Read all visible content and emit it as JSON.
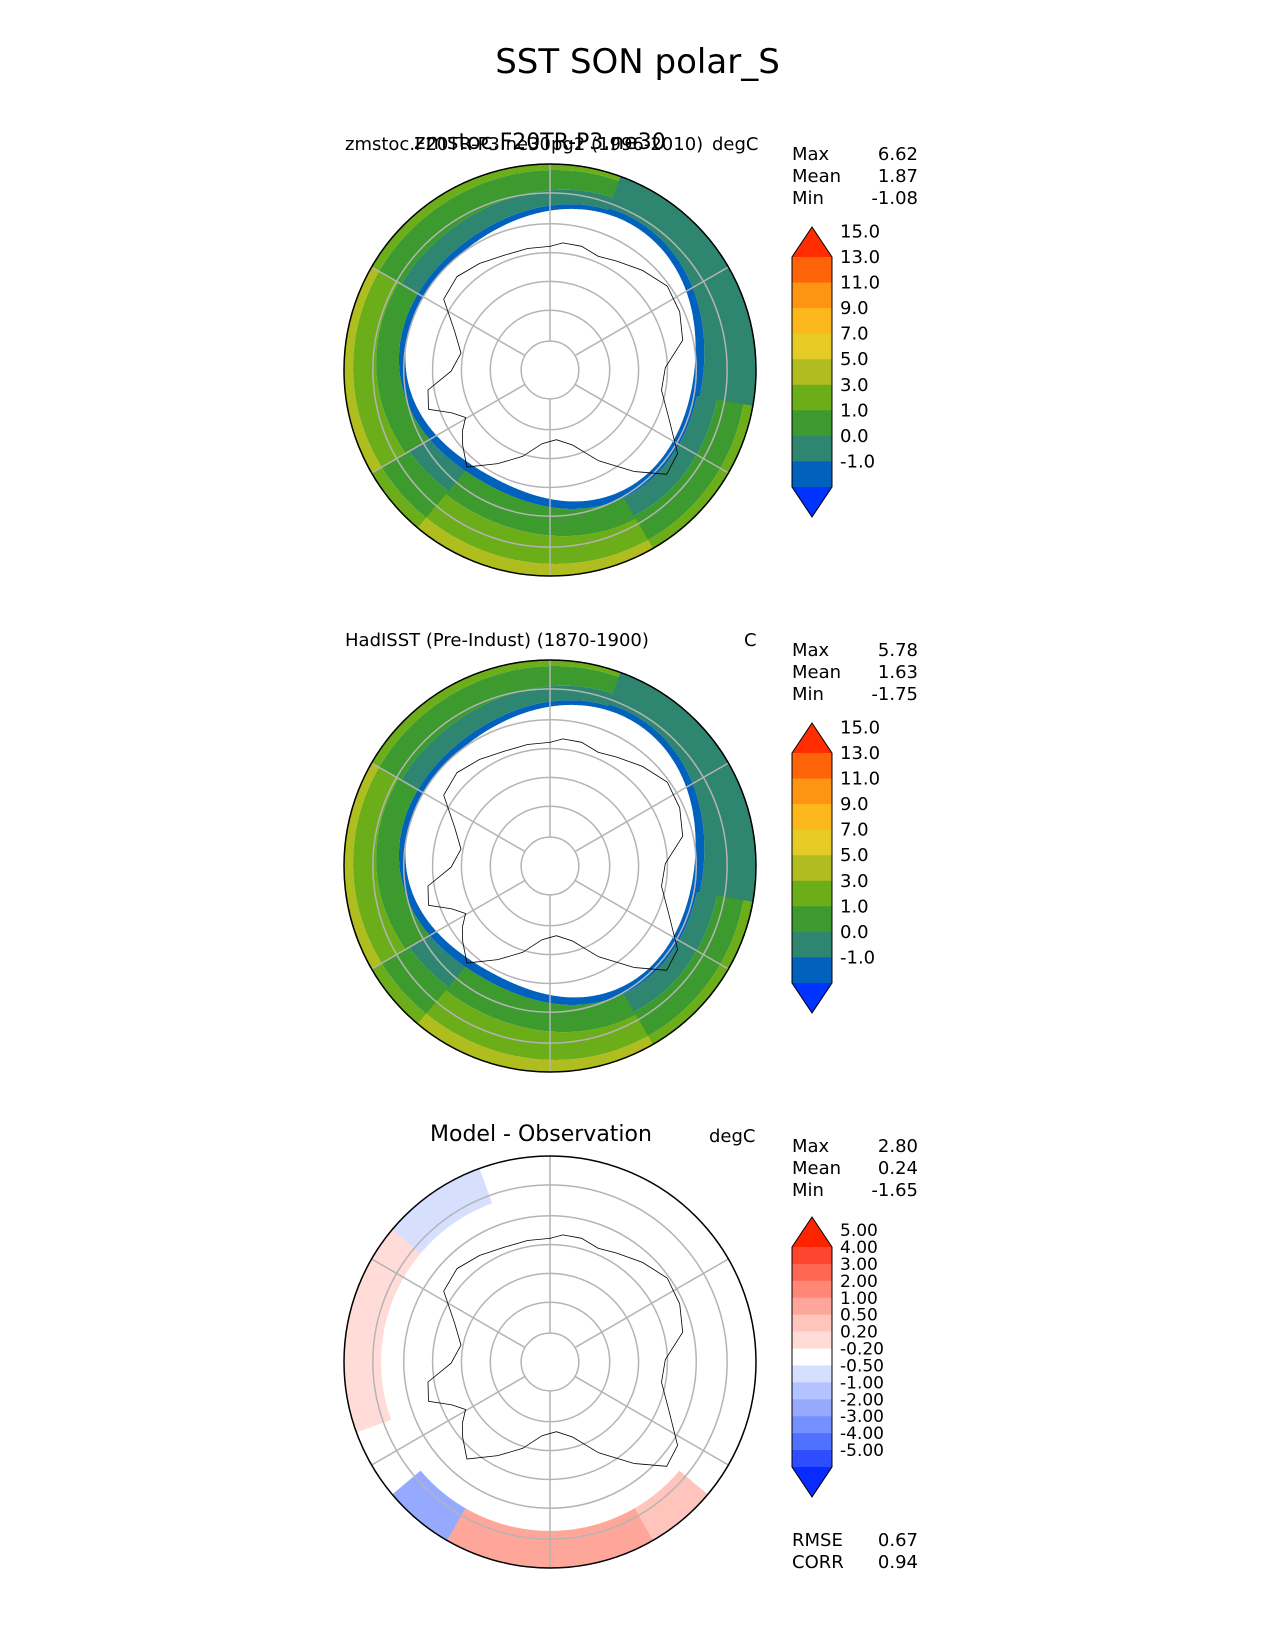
{
  "figure": {
    "title": "SST SON polar_S"
  },
  "chart_data": [
    {
      "type": "heatmap",
      "projection": "south-polar-stereographic",
      "title_left": "zmstoc.F20TR-P3.ne30pg2 (1996-2010)",
      "title_center": "zmstoc.F20TR-P3.ne30",
      "title_right": "degC",
      "stats": {
        "max_label": "Max",
        "max": "6.62",
        "mean_label": "Mean",
        "mean": "1.87",
        "min_label": "Min",
        "min": "-1.08"
      },
      "colorbar": {
        "levels": [
          "-1.0",
          "0.0",
          "1.0",
          "3.0",
          "5.0",
          "7.0",
          "9.0",
          "11.0",
          "13.0",
          "15.0"
        ],
        "colors": [
          "#0033ff",
          "#0062bd",
          "#2e8570",
          "#3c9a2e",
          "#6cad1a",
          "#afbd1f",
          "#e6cb26",
          "#fdb91c",
          "#fd9412",
          "#fd6307",
          "#ff2d00"
        ],
        "extend": "both"
      }
    },
    {
      "type": "heatmap",
      "projection": "south-polar-stereographic",
      "title_left": "HadISST (Pre-Indust) (1870-1900)",
      "title_right": "C",
      "stats": {
        "max_label": "Max",
        "max": "5.78",
        "mean_label": "Mean",
        "mean": "1.63",
        "min_label": "Min",
        "min": "-1.75"
      },
      "colorbar": {
        "levels": [
          "-1.0",
          "0.0",
          "1.0",
          "3.0",
          "5.0",
          "7.0",
          "9.0",
          "11.0",
          "13.0",
          "15.0"
        ],
        "colors": [
          "#0033ff",
          "#0062bd",
          "#2e8570",
          "#3c9a2e",
          "#6cad1a",
          "#afbd1f",
          "#e6cb26",
          "#fdb91c",
          "#fd9412",
          "#fd6307",
          "#ff2d00"
        ],
        "extend": "both"
      }
    },
    {
      "type": "heatmap",
      "projection": "south-polar-stereographic",
      "title_center": "Model - Observation",
      "title_right": "degC",
      "stats": {
        "max_label": "Max",
        "max": "2.80",
        "mean_label": "Mean",
        "mean": "0.24",
        "min_label": "Min",
        "min": "-1.65"
      },
      "metrics": {
        "rmse_label": "RMSE",
        "rmse": "0.67",
        "corr_label": "CORR",
        "corr": "0.94"
      },
      "colorbar": {
        "levels": [
          "-5.00",
          "-4.00",
          "-3.00",
          "-2.00",
          "-1.00",
          "-0.50",
          "-0.20",
          "0.20",
          "0.50",
          "1.00",
          "2.00",
          "3.00",
          "4.00",
          "5.00"
        ],
        "colors": [
          "#0a2bff",
          "#2d4dff",
          "#5070ff",
          "#7590ff",
          "#95aaff",
          "#b3c3ff",
          "#d7dfff",
          "#ffffff",
          "#ffdcd8",
          "#ffc4bb",
          "#ffa69a",
          "#ff8777",
          "#ff6653",
          "#ff452e",
          "#ff2400"
        ],
        "extend": "both"
      }
    }
  ]
}
